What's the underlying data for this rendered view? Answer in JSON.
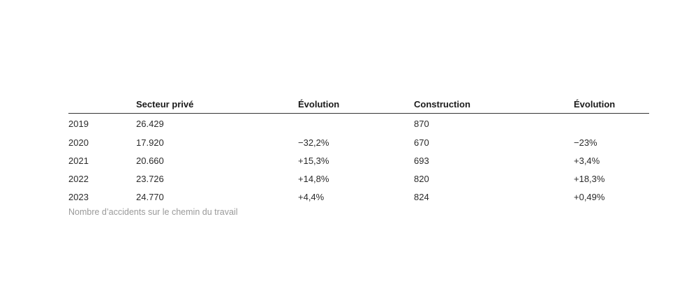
{
  "table": {
    "headers": [
      "",
      "Secteur privé",
      "Évolution",
      "Construction",
      "Évolution"
    ],
    "rows": [
      [
        "2019",
        "26.429",
        "",
        "870",
        ""
      ],
      [
        "2020",
        "17.920",
        "−32,2%",
        "670",
        "−23%"
      ],
      [
        "2021",
        "20.660",
        "+15,3%",
        "693",
        "+3,4%"
      ],
      [
        "2022",
        "23.726",
        "+14,8%",
        "820",
        "+18,3%"
      ],
      [
        "2023",
        "24.770",
        "+4,4%",
        "824",
        "+0,49%"
      ]
    ]
  },
  "caption": "Nombre d’accidents sur le chemin du travail"
}
